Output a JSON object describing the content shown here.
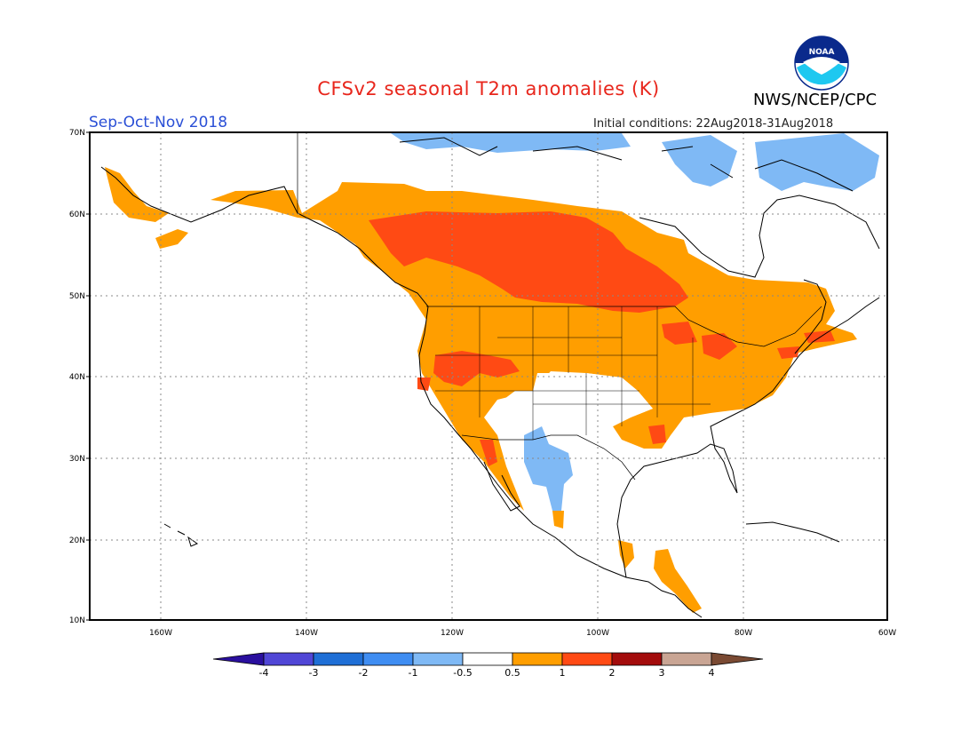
{
  "title": "CFSv2 seasonal T2m anomalies (K)",
  "season": "Sep-Oct-Nov 2018",
  "agency": "NWS/NCEP/CPC",
  "logo_text": "NOAA",
  "initial_conditions": "Initial conditions: 22Aug2018-31Aug2018",
  "lat_labels": [
    "70N",
    "60N",
    "50N",
    "40N",
    "30N",
    "20N",
    "10N"
  ],
  "lon_labels": [
    "160W",
    "140W",
    "120W",
    "100W",
    "80W",
    "60W"
  ],
  "colorbar": {
    "labels": [
      "-4",
      "-3",
      "-2",
      "-1",
      "-0.5",
      "0.5",
      "1",
      "2",
      "3",
      "4"
    ],
    "colors": [
      "#2a0f9e",
      "#5046d6",
      "#1f6fd6",
      "#3f8df2",
      "#7fb9f5",
      "#ffffff",
      "#ff9e00",
      "#ff4a14",
      "#a30c0c",
      "#c9a594",
      "#7a4a33"
    ]
  },
  "map": {
    "lon_range": [
      -172,
      -60
    ],
    "lat_range": [
      10,
      70
    ],
    "anomaly_regions": [
      {
        "level": "1-2",
        "color": "#ff4a14",
        "desc": "Central/western Canada"
      },
      {
        "level": "0.5-1",
        "color": "#ff9e00",
        "desc": "Western Canada, USA"
      },
      {
        "level": "-1--0.5",
        "color": "#7fb9f5",
        "desc": "Arctic, NW Mexico"
      }
    ]
  }
}
